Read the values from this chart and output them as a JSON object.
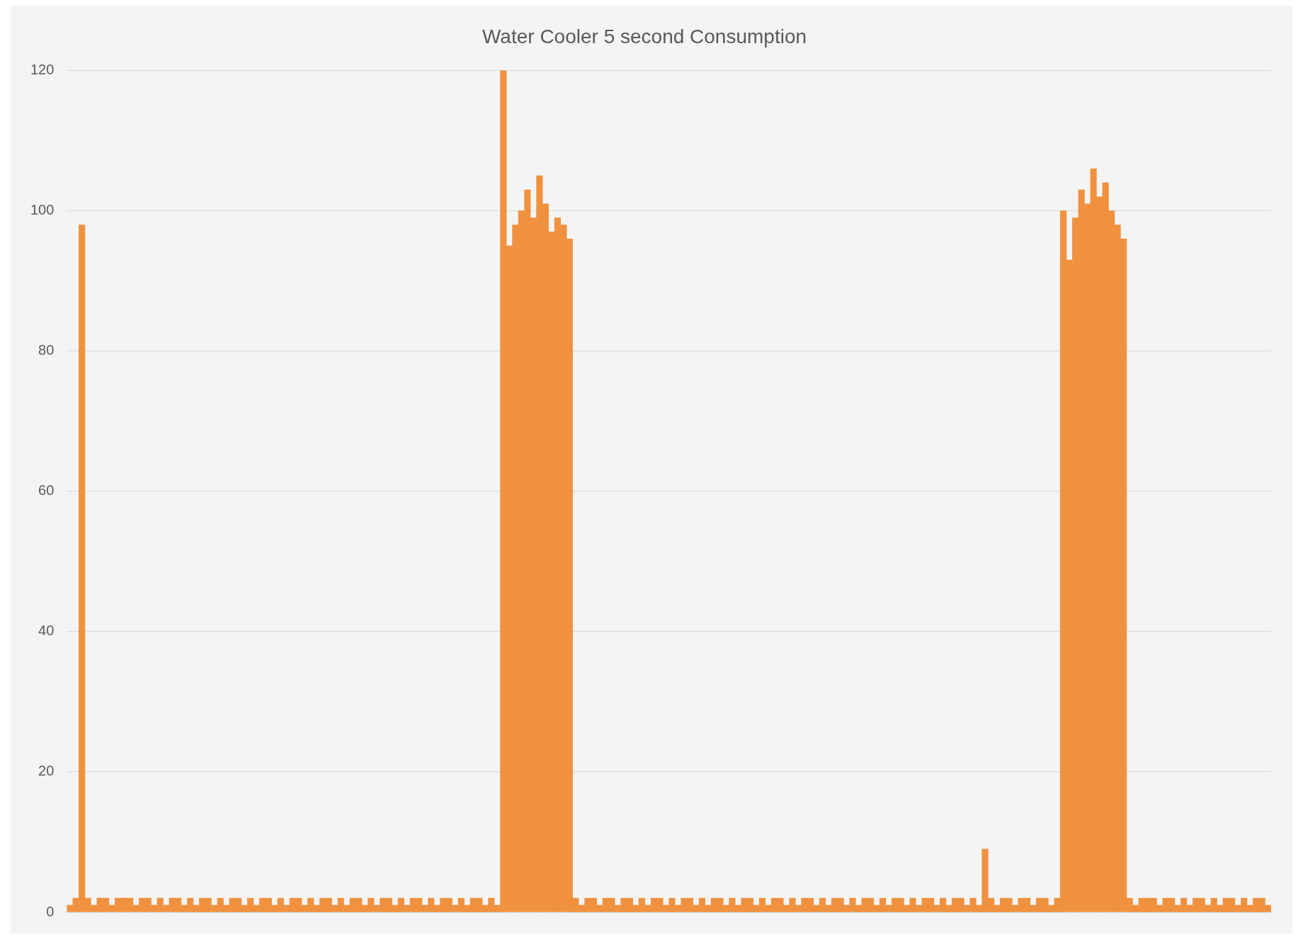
{
  "chart_data": {
    "type": "bar",
    "title": "Water Cooler 5 second Consumption",
    "categories": [
      null,
      null,
      null,
      null,
      null,
      null,
      null,
      null,
      null,
      null,
      null,
      null,
      null,
      null,
      null,
      null,
      null,
      null,
      null,
      null,
      null,
      null,
      null,
      null,
      null,
      null,
      null,
      null,
      null,
      null,
      null,
      null,
      null,
      null,
      null,
      null,
      null,
      null,
      null,
      null,
      null,
      null,
      null,
      null,
      null,
      null,
      null,
      null,
      null,
      null,
      null,
      null,
      null,
      null,
      null,
      null,
      null,
      null,
      null,
      null,
      null,
      null,
      null,
      null,
      null,
      null,
      null,
      null,
      null,
      null,
      null,
      null,
      null,
      null,
      null,
      null,
      null,
      null,
      null,
      null,
      null,
      null,
      null,
      null,
      null,
      null,
      null,
      null,
      null,
      null,
      null,
      null,
      null,
      null,
      null,
      null,
      null,
      null,
      null,
      null,
      null,
      null,
      null,
      null,
      null,
      null,
      null,
      null,
      null,
      null,
      null,
      null,
      null,
      null,
      null,
      null,
      null,
      null,
      null,
      null,
      null,
      null,
      null,
      null,
      null,
      null,
      null,
      null,
      null,
      null,
      null,
      null,
      null,
      null,
      null,
      null,
      null,
      null,
      null,
      null,
      null,
      null,
      null,
      null,
      null,
      null,
      null,
      null,
      null,
      null,
      null,
      null,
      null,
      null,
      null,
      null,
      null,
      null,
      null,
      null,
      null,
      null,
      null,
      null,
      null,
      null,
      null,
      null,
      null,
      null,
      null,
      null,
      null,
      null,
      null,
      null,
      null,
      null,
      null,
      null,
      null,
      null,
      null,
      null,
      null,
      null,
      null,
      null,
      null,
      null,
      null,
      null,
      null,
      null,
      null,
      null,
      null,
      null,
      null,
      null
    ],
    "values": [
      1,
      2,
      98,
      2,
      1,
      2,
      2,
      1,
      2,
      2,
      2,
      1,
      2,
      2,
      1,
      2,
      1,
      2,
      2,
      1,
      2,
      1,
      2,
      2,
      1,
      2,
      1,
      2,
      2,
      1,
      2,
      1,
      2,
      2,
      1,
      2,
      1,
      2,
      2,
      1,
      2,
      1,
      2,
      2,
      1,
      2,
      1,
      2,
      2,
      1,
      2,
      1,
      2,
      2,
      1,
      2,
      1,
      2,
      2,
      1,
      2,
      1,
      2,
      2,
      1,
      2,
      1,
      2,
      2,
      1,
      2,
      1,
      120,
      95,
      98,
      100,
      103,
      99,
      105,
      101,
      97,
      99,
      98,
      96,
      2,
      1,
      2,
      2,
      1,
      2,
      2,
      1,
      2,
      2,
      1,
      2,
      1,
      2,
      2,
      1,
      2,
      1,
      2,
      2,
      1,
      2,
      1,
      2,
      2,
      1,
      2,
      1,
      2,
      2,
      1,
      2,
      1,
      2,
      2,
      1,
      2,
      1,
      2,
      2,
      1,
      2,
      1,
      2,
      2,
      1,
      2,
      1,
      2,
      2,
      1,
      2,
      1,
      2,
      2,
      1,
      2,
      1,
      2,
      2,
      1,
      2,
      1,
      2,
      2,
      1,
      2,
      1,
      9,
      2,
      1,
      2,
      2,
      1,
      2,
      2,
      1,
      2,
      2,
      1,
      2,
      100,
      93,
      99,
      103,
      101,
      106,
      102,
      104,
      100,
      98,
      96,
      2,
      1,
      2,
      2,
      2,
      1,
      2,
      2,
      1,
      2,
      1,
      2,
      2,
      1,
      2,
      1,
      2,
      2,
      1,
      2,
      1,
      2,
      2,
      1
    ],
    "color": "#f0913f",
    "ylim": [
      0,
      120
    ],
    "yticks": [
      0,
      20,
      40,
      60,
      80,
      100,
      120
    ],
    "grid": "y",
    "tick_labels": "y"
  }
}
